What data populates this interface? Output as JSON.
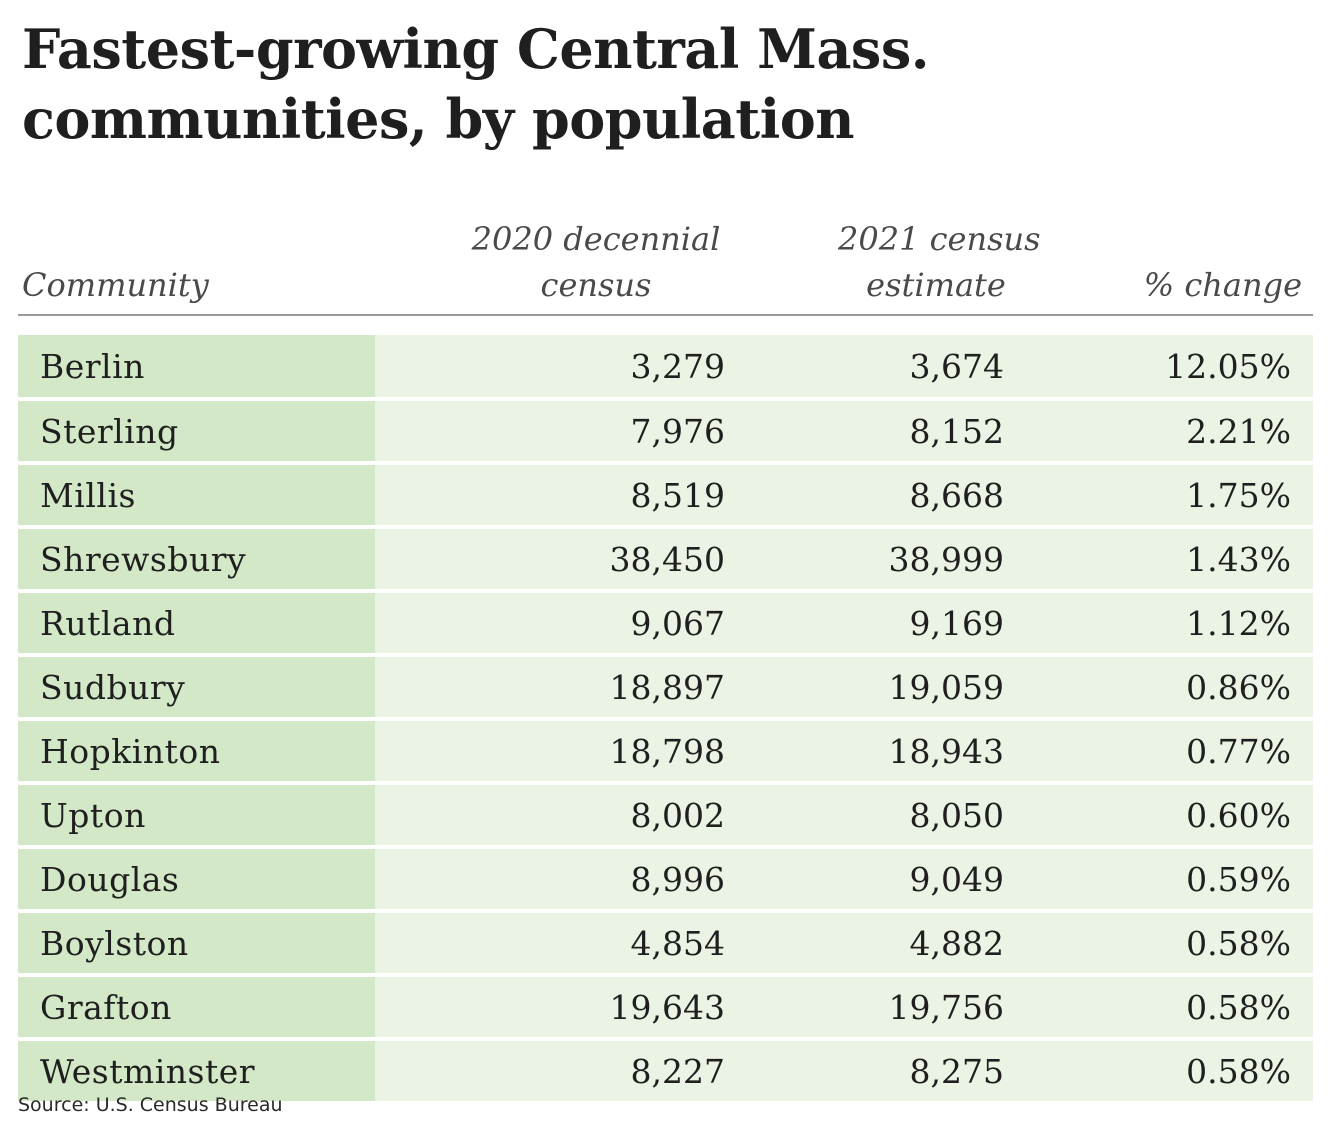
{
  "chart_data": {
    "type": "table",
    "title_lines": [
      "Fastest-growing Central Mass.",
      "communities, by population"
    ],
    "columns": [
      {
        "key": "community",
        "lines": [
          "Community"
        ]
      },
      {
        "key": "census_2020",
        "lines": [
          "2020 decennial",
          "census"
        ]
      },
      {
        "key": "estimate_2021",
        "lines": [
          "2021 census",
          "estimate"
        ]
      },
      {
        "key": "pct_change",
        "lines": [
          "% change"
        ]
      }
    ],
    "rows": [
      {
        "community": "Berlin",
        "census_2020": "3,279",
        "estimate_2021": "3,674",
        "pct_change": "12.05%"
      },
      {
        "community": "Sterling",
        "census_2020": "7,976",
        "estimate_2021": "8,152",
        "pct_change": "2.21%"
      },
      {
        "community": "Millis",
        "census_2020": "8,519",
        "estimate_2021": "8,668",
        "pct_change": "1.75%"
      },
      {
        "community": "Shrewsbury",
        "census_2020": "38,450",
        "estimate_2021": "38,999",
        "pct_change": "1.43%"
      },
      {
        "community": "Rutland",
        "census_2020": "9,067",
        "estimate_2021": "9,169",
        "pct_change": "1.12%"
      },
      {
        "community": "Sudbury",
        "census_2020": "18,897",
        "estimate_2021": "19,059",
        "pct_change": "0.86%"
      },
      {
        "community": "Hopkinton",
        "census_2020": "18,798",
        "estimate_2021": "18,943",
        "pct_change": "0.77%"
      },
      {
        "community": "Upton",
        "census_2020": "8,002",
        "estimate_2021": "8,050",
        "pct_change": "0.60%"
      },
      {
        "community": "Douglas",
        "census_2020": "8,996",
        "estimate_2021": "9,049",
        "pct_change": "0.59%"
      },
      {
        "community": "Boylston",
        "census_2020": "4,854",
        "estimate_2021": "4,882",
        "pct_change": "0.58%"
      },
      {
        "community": "Grafton",
        "census_2020": "19,643",
        "estimate_2021": "19,756",
        "pct_change": "0.58%"
      },
      {
        "community": "Westminster",
        "census_2020": "8,227",
        "estimate_2021": "8,275",
        "pct_change": "0.58%"
      }
    ],
    "source": "Source: U.S. Census Bureau",
    "colors": {
      "name_cell": "#d3e8c6",
      "value_cells": "#ebf3e4",
      "rule": "#9a9a9a",
      "text": "#1f1f1f"
    }
  }
}
